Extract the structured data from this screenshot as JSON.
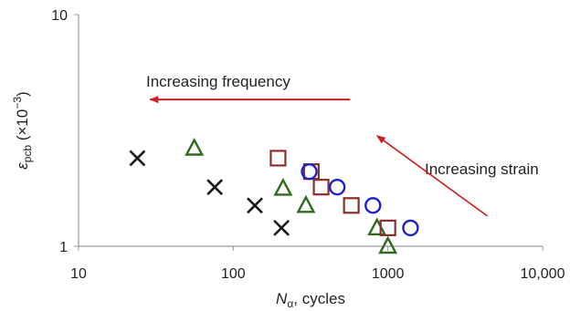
{
  "chart_data": {
    "type": "scatter",
    "title": "",
    "x_scale": "log",
    "y_scale": "log",
    "xlim": [
      10,
      10000
    ],
    "ylim": [
      1,
      10
    ],
    "x_ticks": [
      10,
      100,
      1000,
      10000
    ],
    "x_tick_labels": [
      "10",
      "100",
      "1000",
      "10,000"
    ],
    "y_ticks": [
      1,
      10
    ],
    "y_tick_labels": [
      "1",
      "10"
    ],
    "xlabel": {
      "main": "N",
      "sub": "α",
      "rest": ", cycles"
    },
    "ylabel": {
      "main": "ε",
      "sub": "pcb",
      "rest": " (×10",
      "sup": "−3",
      "close": ")"
    },
    "grid": false,
    "legend": "none",
    "series": [
      {
        "marker": "x",
        "color": "#1a1a1a",
        "points": [
          {
            "x": 24,
            "y": 2.4
          },
          {
            "x": 76,
            "y": 1.8
          },
          {
            "x": 138,
            "y": 1.5
          },
          {
            "x": 205,
            "y": 1.2
          }
        ]
      },
      {
        "marker": "triangle",
        "color": "#2f6b1f",
        "points": [
          {
            "x": 56,
            "y": 2.65
          },
          {
            "x": 210,
            "y": 1.78
          },
          {
            "x": 295,
            "y": 1.5
          },
          {
            "x": 850,
            "y": 1.2
          },
          {
            "x": 1000,
            "y": 1.0
          }
        ]
      },
      {
        "marker": "square",
        "color": "#8b2e2e",
        "points": [
          {
            "x": 195,
            "y": 2.4
          },
          {
            "x": 320,
            "y": 2.1
          },
          {
            "x": 370,
            "y": 1.8
          },
          {
            "x": 580,
            "y": 1.5
          },
          {
            "x": 1000,
            "y": 1.2
          }
        ]
      },
      {
        "marker": "circle",
        "color": "#1f1fcc",
        "points": [
          {
            "x": 310,
            "y": 2.1
          },
          {
            "x": 470,
            "y": 1.8
          },
          {
            "x": 800,
            "y": 1.5
          },
          {
            "x": 1400,
            "y": 1.2
          }
        ]
      }
    ],
    "annotations": [
      {
        "text": "Increasing frequency",
        "arrow": {
          "from": {
            "x": 570,
            "y": 4.3
          },
          "to": {
            "x": 29,
            "y": 4.3
          }
        },
        "arrow_color": "#cc1f1f"
      },
      {
        "text": "Increasing strain",
        "arrow": {
          "from": {
            "x": 4400,
            "y": 1.35
          },
          "to": {
            "x": 850,
            "y": 3.0
          }
        },
        "arrow_color": "#cc1f1f"
      }
    ]
  }
}
